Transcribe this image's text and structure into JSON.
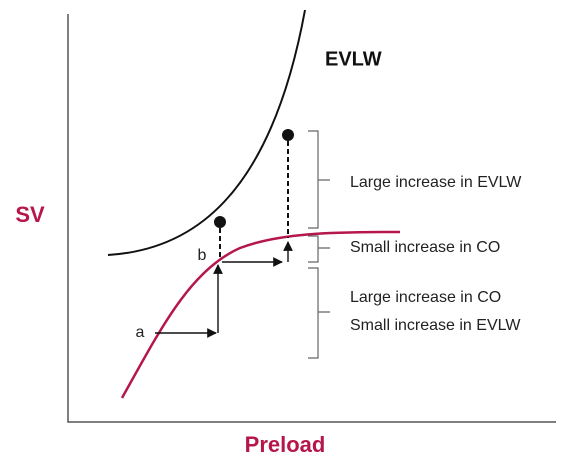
{
  "diagram": {
    "axis_labels": {
      "y": "SV",
      "x": "Preload"
    },
    "curve_label": "EVLW",
    "points": [
      "a",
      "b"
    ],
    "annotations": [
      "Large increase in EVLW",
      "Small increase in CO",
      "Large increase in CO",
      "Small increase in EVLW"
    ]
  }
}
